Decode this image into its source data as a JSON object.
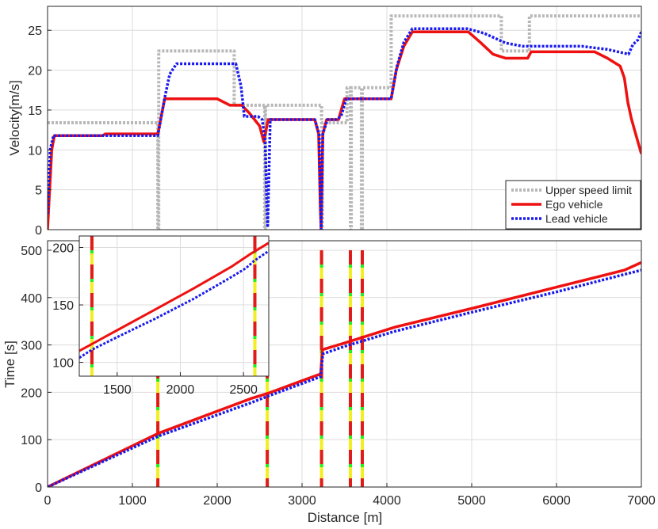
{
  "colors": {
    "limit": "#b8b8b8",
    "ego": "#ee1111",
    "lead": "#1a1aee",
    "signal_red": "#e01b1b",
    "signal_green": "#22ee22",
    "signal_yellow": "#f2ee22"
  },
  "chart_data": [
    {
      "type": "line",
      "title": "",
      "xlabel": "",
      "ylabel": "Velocity[m/s]",
      "xlim": [
        0,
        7000
      ],
      "ylim": [
        0,
        28
      ],
      "grid": true,
      "legend_position": "bottom-right",
      "yticks": [
        0,
        5,
        10,
        15,
        20,
        25
      ],
      "series": [
        {
          "name": "Upper speed limit",
          "style": "dotted",
          "points": [
            [
              0,
              13.4
            ],
            [
              1300,
              13.4
            ],
            [
              1300,
              0
            ],
            [
              1310,
              0
            ],
            [
              1310,
              22.4
            ],
            [
              2200,
              22.4
            ],
            [
              2200,
              15.6
            ],
            [
              2560,
              15.6
            ],
            [
              2560,
              0
            ],
            [
              2570,
              0
            ],
            [
              2570,
              15.6
            ],
            [
              3230,
              15.6
            ],
            [
              3230,
              0
            ],
            [
              3240,
              0
            ],
            [
              3240,
              13.4
            ],
            [
              3530,
              13.4
            ],
            [
              3530,
              17.8
            ],
            [
              3570,
              17.8
            ],
            [
              3570,
              0
            ],
            [
              3580,
              0
            ],
            [
              3580,
              17.8
            ],
            [
              3700,
              17.8
            ],
            [
              3700,
              0
            ],
            [
              3710,
              0
            ],
            [
              3710,
              17.8
            ],
            [
              4050,
              17.8
            ],
            [
              4050,
              26.8
            ],
            [
              5350,
              26.8
            ],
            [
              5350,
              22.4
            ],
            [
              5680,
              22.4
            ],
            [
              5680,
              26.8
            ],
            [
              7000,
              26.8
            ]
          ]
        },
        {
          "name": "Ego vehicle",
          "style": "solid",
          "points": [
            [
              0,
              0
            ],
            [
              20,
              4
            ],
            [
              50,
              10
            ],
            [
              80,
              11.8
            ],
            [
              650,
              11.8
            ],
            [
              680,
              12
            ],
            [
              1300,
              12
            ],
            [
              1380,
              16.4
            ],
            [
              2000,
              16.4
            ],
            [
              2150,
              15.6
            ],
            [
              2290,
              15.6
            ],
            [
              2380,
              14.6
            ],
            [
              2500,
              13
            ],
            [
              2550,
              11
            ],
            [
              2600,
              13.8
            ],
            [
              3150,
              13.8
            ],
            [
              3195,
              12
            ],
            [
              3215,
              3
            ],
            [
              3225,
              0
            ],
            [
              3245,
              12
            ],
            [
              3290,
              13.8
            ],
            [
              3430,
              13.8
            ],
            [
              3500,
              16.4
            ],
            [
              4050,
              16.4
            ],
            [
              4110,
              20
            ],
            [
              4200,
              23
            ],
            [
              4300,
              24.8
            ],
            [
              4960,
              24.8
            ],
            [
              5100,
              23.5
            ],
            [
              5250,
              22
            ],
            [
              5400,
              21.5
            ],
            [
              5660,
              21.5
            ],
            [
              5700,
              22.3
            ],
            [
              6450,
              22.3
            ],
            [
              6600,
              21.5
            ],
            [
              6750,
              20.5
            ],
            [
              6800,
              19
            ],
            [
              6840,
              16
            ],
            [
              6880,
              14
            ],
            [
              6920,
              12.5
            ],
            [
              6960,
              11
            ],
            [
              7000,
              9.5
            ]
          ]
        },
        {
          "name": "Lead vehicle",
          "style": "dotted",
          "points": [
            [
              0,
              2
            ],
            [
              30,
              10
            ],
            [
              70,
              11.8
            ],
            [
              1300,
              11.8
            ],
            [
              1380,
              16.5
            ],
            [
              1440,
              19.5
            ],
            [
              1520,
              20.8
            ],
            [
              2220,
              20.8
            ],
            [
              2280,
              18
            ],
            [
              2320,
              14.2
            ],
            [
              2480,
              14.2
            ],
            [
              2530,
              13.8
            ],
            [
              2565,
              11
            ],
            [
              2585,
              3
            ],
            [
              2595,
              0.5
            ],
            [
              2625,
              13.8
            ],
            [
              3150,
              13.8
            ],
            [
              3200,
              12
            ],
            [
              3220,
              2
            ],
            [
              3225,
              0
            ],
            [
              3245,
              12
            ],
            [
              3300,
              13.8
            ],
            [
              3400,
              13.8
            ],
            [
              3460,
              14.2
            ],
            [
              3520,
              16.4
            ],
            [
              4050,
              16.4
            ],
            [
              4120,
              20.5
            ],
            [
              4200,
              23.5
            ],
            [
              4300,
              25.2
            ],
            [
              4950,
              25.2
            ],
            [
              5150,
              24.6
            ],
            [
              5400,
              23.4
            ],
            [
              5600,
              23
            ],
            [
              6300,
              23
            ],
            [
              6600,
              22.6
            ],
            [
              6850,
              22
            ],
            [
              6900,
              23.2
            ],
            [
              6960,
              23.8
            ],
            [
              7000,
              24.8
            ]
          ]
        }
      ]
    },
    {
      "type": "line",
      "title": "",
      "xlabel": "Distance [m]",
      "ylabel": "Time [s]",
      "xlim": [
        0,
        7000
      ],
      "ylim": [
        0,
        520
      ],
      "grid": true,
      "xticks": [
        0,
        1000,
        2000,
        3000,
        4000,
        5000,
        6000,
        7000
      ],
      "yticks": [
        0,
        100,
        200,
        300,
        400,
        500
      ],
      "series": [
        {
          "name": "Ego vehicle",
          "style": "solid",
          "points": [
            [
              0,
              0
            ],
            [
              1300,
              113
            ],
            [
              2400,
              187
            ],
            [
              2600,
              198
            ],
            [
              3220,
              239
            ],
            [
              3240,
              290
            ],
            [
              3500,
              304
            ],
            [
              4100,
              338
            ],
            [
              5000,
              377
            ],
            [
              6000,
              422
            ],
            [
              6800,
              458
            ],
            [
              7000,
              474
            ]
          ]
        },
        {
          "name": "Lead vehicle",
          "style": "dotted",
          "points": [
            [
              0,
              0
            ],
            [
              1300,
              107
            ],
            [
              2400,
              178
            ],
            [
              2600,
              192
            ],
            [
              3220,
              233
            ],
            [
              3245,
              281
            ],
            [
              3500,
              297
            ],
            [
              4100,
              329
            ],
            [
              5000,
              369
            ],
            [
              6000,
              412
            ],
            [
              6800,
              449
            ],
            [
              7000,
              458
            ]
          ]
        }
      ],
      "signal_positions": [
        1300,
        2590,
        3230,
        3570,
        3710
      ],
      "signal_top_time": 500
    },
    {
      "type": "line",
      "title": "",
      "xlabel": "",
      "ylabel": "",
      "xlim": [
        1200,
        2700
      ],
      "ylim": [
        88,
        210
      ],
      "grid": true,
      "xticks": [
        1500,
        2000,
        2500
      ],
      "yticks": [
        100,
        150,
        200
      ],
      "series": [
        {
          "name": "Ego vehicle",
          "style": "solid",
          "points": [
            [
              1200,
              110
            ],
            [
              1300,
              116
            ],
            [
              1500,
              128
            ],
            [
              1800,
              146
            ],
            [
              2100,
              164
            ],
            [
              2400,
              183
            ],
            [
              2550,
              194
            ],
            [
              2700,
              204
            ]
          ]
        },
        {
          "name": "Lead vehicle",
          "style": "dotted",
          "points": [
            [
              1200,
              104
            ],
            [
              1300,
              111
            ],
            [
              1500,
              122
            ],
            [
              1800,
              138
            ],
            [
              2100,
              155
            ],
            [
              2400,
              174
            ],
            [
              2520,
              182
            ],
            [
              2580,
              188
            ],
            [
              2700,
              197
            ]
          ]
        }
      ],
      "signal_positions": [
        1300,
        2590
      ]
    }
  ]
}
